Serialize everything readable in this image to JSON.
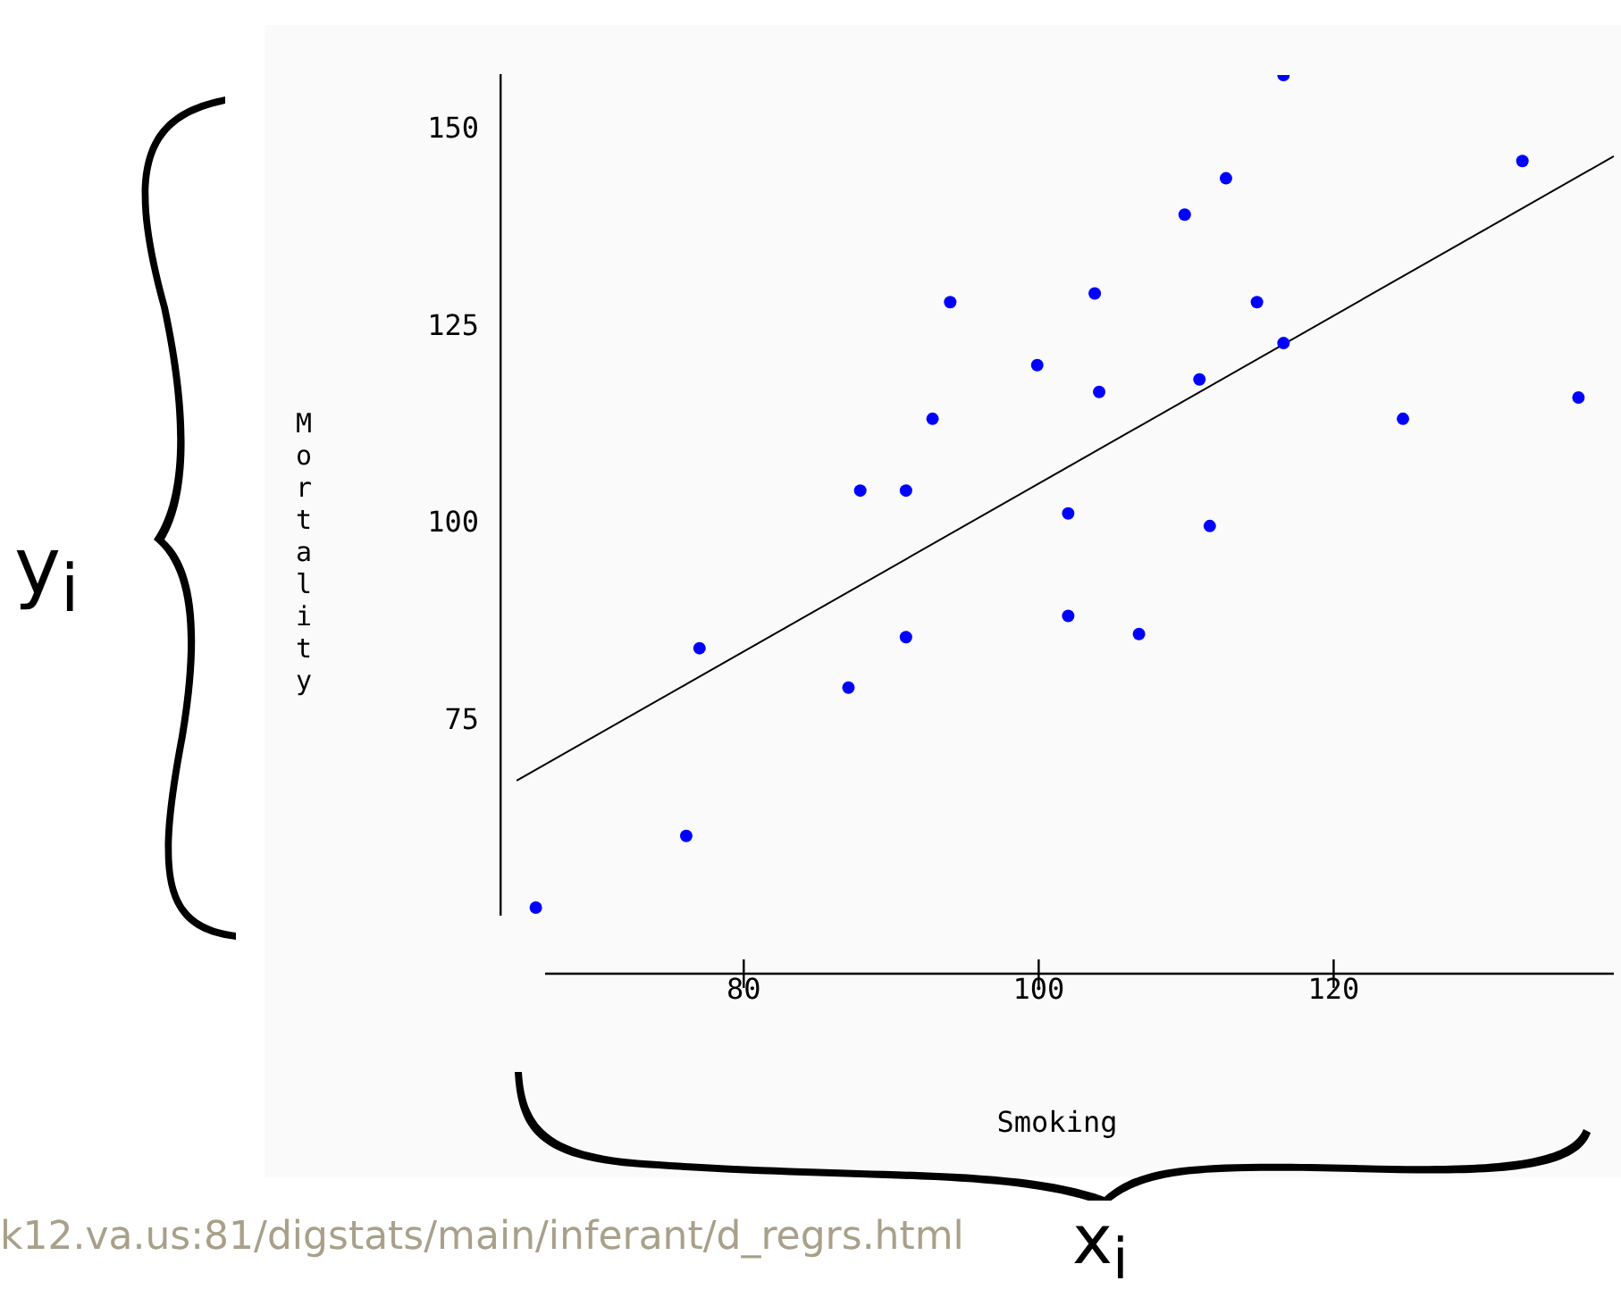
{
  "chart_data": {
    "type": "scatter",
    "xlabel": "Smoking",
    "ylabel": "Mortality",
    "xlim": [
      63.5,
      139
    ],
    "ylim": [
      50.5,
      157
    ],
    "xticks": [
      80,
      100,
      120
    ],
    "yticks": [
      75,
      100,
      125,
      150
    ],
    "grid": false,
    "legend": false,
    "marker": "circle",
    "series": [
      {
        "color": "#0000ff",
        "x": [
          65.9,
          76.1,
          77.0,
          87.1,
          87.9,
          91.0,
          91.0,
          92.8,
          94.0,
          99.9,
          102.0,
          102.0,
          103.8,
          104.1,
          106.8,
          109.9,
          110.9,
          111.6,
          112.7,
          114.8,
          116.6,
          116.6,
          124.7,
          132.8,
          136.6
        ],
        "values": [
          51.4,
          60.5,
          84.3,
          79.3,
          104.3,
          104.3,
          85.7,
          113.4,
          128.2,
          120.2,
          101.4,
          88.4,
          129.3,
          116.8,
          86.1,
          139.3,
          118.4,
          99.8,
          143.9,
          128.2,
          157,
          123,
          113.4,
          146.1,
          116.1
        ]
      },
      {
        "type": "line",
        "color": "#000000",
        "marker": "none",
        "x": [
          64.6,
          139
        ],
        "values": [
          67.5,
          146.7
        ]
      }
    ],
    "annotations": [
      "y$_{i}$",
      "x$_{i}$",
      "k12.va.us:81/digstats/main/inferant/d_regrs.html"
    ]
  }
}
